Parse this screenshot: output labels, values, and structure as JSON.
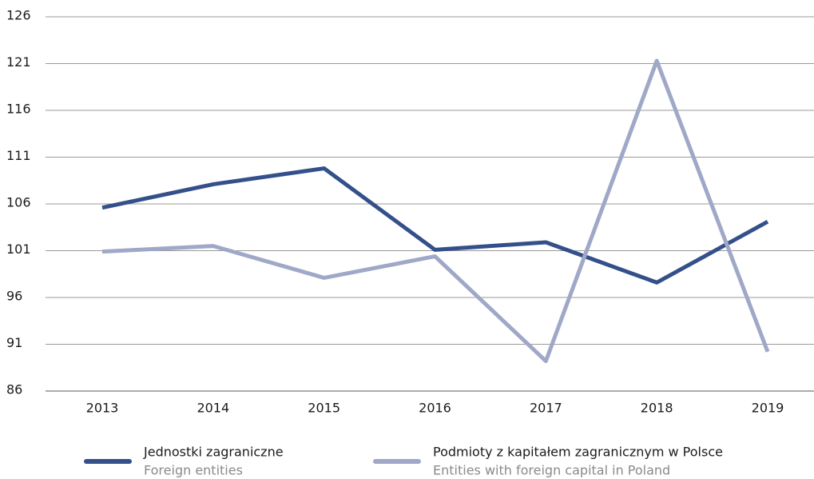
{
  "chart_data": {
    "type": "line",
    "categories": [
      "2013",
      "2014",
      "2015",
      "2016",
      "2017",
      "2018",
      "2019"
    ],
    "series": [
      {
        "name": "Jednostki zagraniczne",
        "subtitle": "Foreign entities",
        "color": "#34508a",
        "values": [
          105.6,
          108.1,
          109.8,
          101.1,
          101.9,
          97.6,
          104.1
        ]
      },
      {
        "name": "Podmioty z kapitałem zagranicznym w Polsce",
        "subtitle": "Entities with foreign capital in Poland",
        "color": "#a0a8c8",
        "values": [
          100.9,
          101.5,
          98.1,
          100.4,
          89.2,
          121.3,
          90.2
        ]
      }
    ],
    "ylim": [
      86,
      126
    ],
    "yticks": [
      86,
      91,
      96,
      101,
      106,
      111,
      116,
      121,
      126
    ],
    "grid": true
  }
}
